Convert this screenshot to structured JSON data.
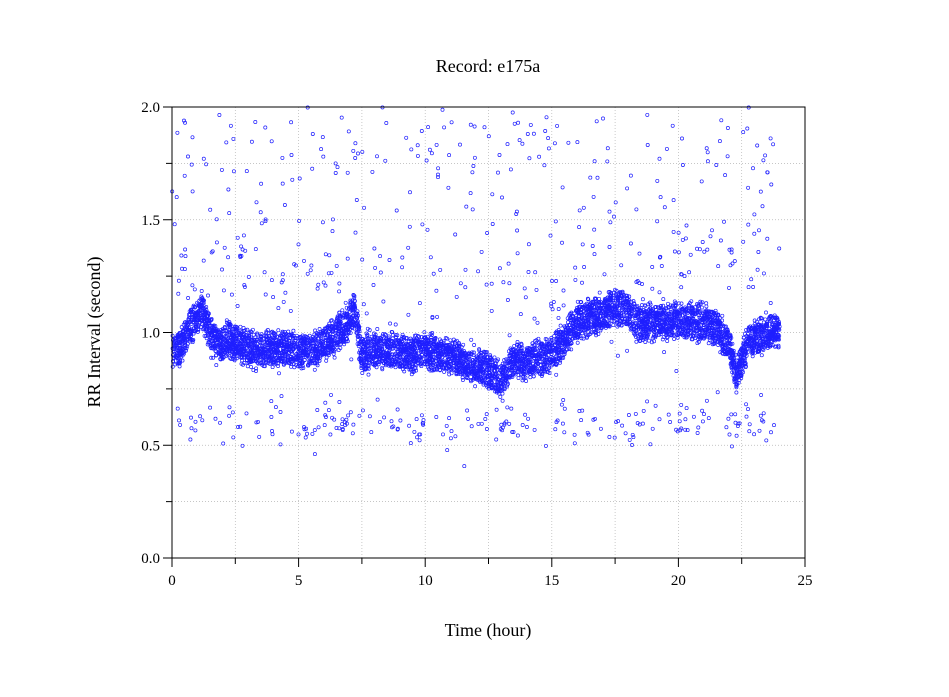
{
  "chart_data": {
    "type": "scatter",
    "title": "Record:  e175a",
    "xlabel": "Time (hour)",
    "ylabel": "RR Interval (second)",
    "xlim": [
      0,
      25
    ],
    "ylim": [
      0,
      2.0
    ],
    "x_ticks": [
      0,
      5,
      10,
      15,
      20,
      25
    ],
    "x_tick_labels": [
      "0",
      "5",
      "10",
      "15",
      "20",
      "25"
    ],
    "y_ticks": [
      0.0,
      0.5,
      1.0,
      1.5,
      2.0
    ],
    "y_tick_labels": [
      "0.0",
      "0.5",
      "1.0",
      "1.5",
      "2.0"
    ],
    "grid": true,
    "marker_color": "#1f1fff",
    "series": [
      {
        "baseline": [
          [
            0.0,
            0.93
          ],
          [
            0.3,
            0.92
          ],
          [
            0.6,
            1.0
          ],
          [
            0.9,
            1.05
          ],
          [
            1.2,
            1.1
          ],
          [
            1.5,
            1.0
          ],
          [
            1.8,
            0.93
          ],
          [
            2.2,
            0.97
          ],
          [
            2.6,
            0.95
          ],
          [
            3.0,
            0.92
          ],
          [
            3.5,
            0.93
          ],
          [
            4.0,
            0.92
          ],
          [
            4.5,
            0.93
          ],
          [
            5.0,
            0.92
          ],
          [
            5.5,
            0.91
          ],
          [
            6.0,
            0.95
          ],
          [
            6.5,
            0.99
          ],
          [
            7.0,
            1.05
          ],
          [
            7.2,
            1.1
          ],
          [
            7.5,
            0.9
          ],
          [
            8.0,
            0.92
          ],
          [
            8.5,
            0.92
          ],
          [
            9.0,
            0.92
          ],
          [
            9.5,
            0.9
          ],
          [
            10.0,
            0.92
          ],
          [
            10.5,
            0.9
          ],
          [
            11.0,
            0.9
          ],
          [
            11.5,
            0.87
          ],
          [
            12.0,
            0.85
          ],
          [
            12.5,
            0.83
          ],
          [
            13.0,
            0.78
          ],
          [
            13.5,
            0.88
          ],
          [
            14.0,
            0.87
          ],
          [
            14.5,
            0.89
          ],
          [
            15.0,
            0.9
          ],
          [
            15.5,
            0.96
          ],
          [
            16.0,
            1.05
          ],
          [
            16.5,
            1.07
          ],
          [
            17.0,
            1.08
          ],
          [
            17.5,
            1.12
          ],
          [
            18.0,
            1.1
          ],
          [
            18.5,
            1.03
          ],
          [
            19.0,
            1.05
          ],
          [
            19.5,
            1.05
          ],
          [
            20.0,
            1.05
          ],
          [
            20.5,
            1.05
          ],
          [
            21.0,
            1.04
          ],
          [
            21.5,
            1.02
          ],
          [
            22.0,
            0.95
          ],
          [
            22.3,
            0.8
          ],
          [
            22.7,
            0.95
          ],
          [
            23.0,
            0.97
          ],
          [
            23.5,
            1.0
          ],
          [
            24.0,
            1.0
          ]
        ],
        "spread": 0.12,
        "approx_point_count": 6000
      }
    ],
    "outlier_bands": [
      {
        "center": 0.6,
        "spread": 0.05,
        "x_range": [
          0,
          24
        ],
        "approx_point_count": 220
      },
      {
        "center": 1.25,
        "spread": 0.17,
        "x_range": [
          0,
          24
        ],
        "approx_point_count": 260
      },
      {
        "center": 1.8,
        "spread": 0.16,
        "x_range": [
          0,
          24
        ],
        "approx_point_count": 200
      }
    ]
  }
}
